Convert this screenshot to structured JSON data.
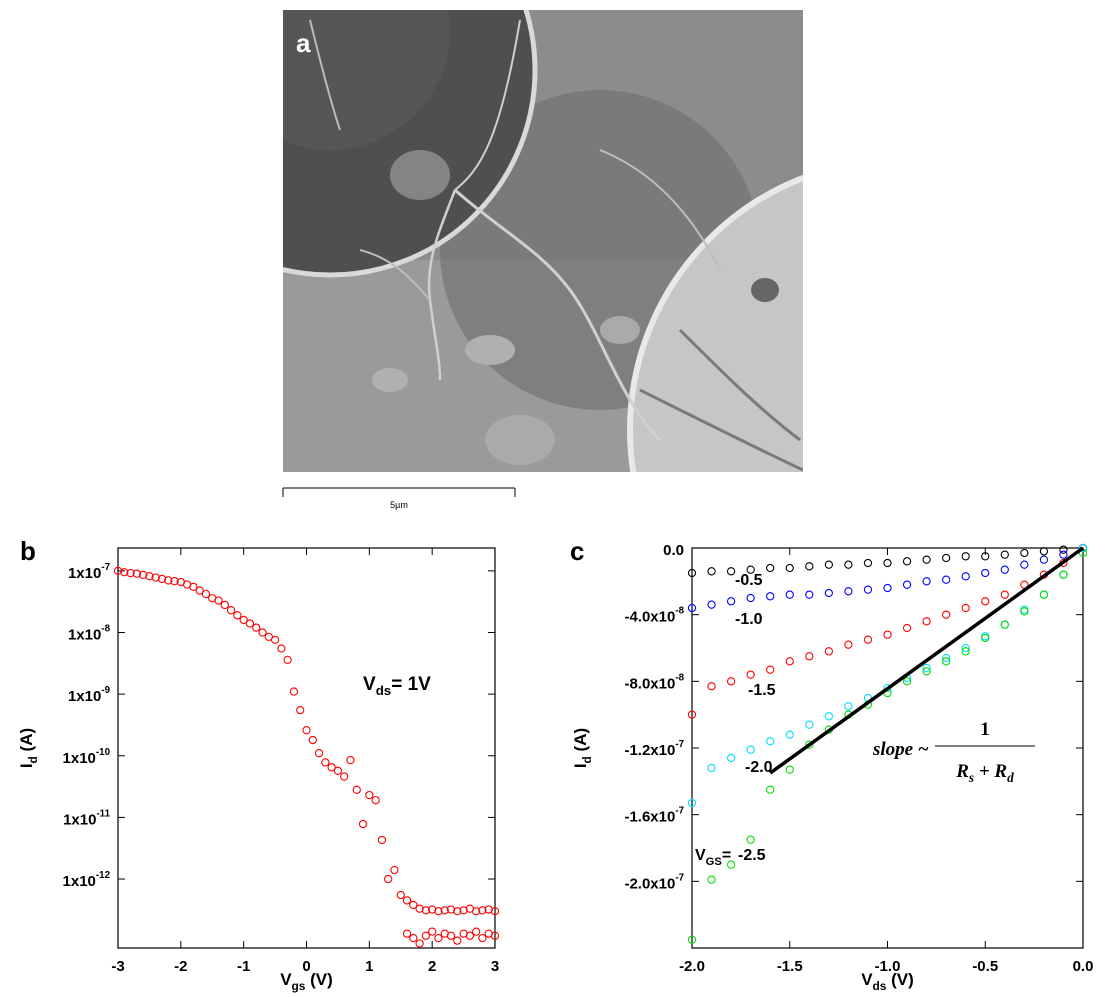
{
  "image_panel": {
    "label": "a",
    "scale_bar": "5µm"
  },
  "chart_data": [
    {
      "type": "scatter",
      "panel_label": "b",
      "xlabel": [
        "V",
        "gs",
        " (V)"
      ],
      "ylabel": [
        "I",
        "d",
        " (A)"
      ],
      "annotation": [
        "V",
        "ds",
        "= 1V"
      ],
      "log_y": true,
      "color": "#ff0000",
      "xlim": [
        -3,
        3
      ],
      "xticks": [
        -3,
        -2,
        -1,
        0,
        1,
        2,
        3
      ],
      "ylim": [
        7.6e-14,
        2.35e-07
      ],
      "yticks": [
        {
          "value": 1e-07,
          "label": "1x10-7"
        },
        {
          "value": 1e-08,
          "label": "1x10-8"
        },
        {
          "value": 1e-09,
          "label": "1x10-9"
        },
        {
          "value": 1e-10,
          "label": "1x10-10"
        },
        {
          "value": 1e-11,
          "label": "1x10-11"
        },
        {
          "value": 1e-12,
          "label": "1x10-12"
        }
      ],
      "x": [
        -3,
        -2.9,
        -2.8,
        -2.7,
        -2.6,
        -2.5,
        -2.4,
        -2.3,
        -2.2,
        -2.1,
        -2,
        -1.9,
        -1.8,
        -1.7,
        -1.6,
        -1.5,
        -1.4,
        -1.3,
        -1.2,
        -1.1,
        -1,
        -0.9,
        -0.8,
        -0.7,
        -0.6,
        -0.5,
        -0.4,
        -0.3,
        -0.2,
        -0.1,
        0,
        0.1,
        0.2,
        0.3,
        0.4,
        0.5,
        0.6,
        0.7,
        0.8,
        0.9,
        1,
        1.1,
        1.2,
        1.3,
        1.4,
        1.5,
        1.6,
        1.7,
        1.8,
        1.9,
        2,
        2.1,
        2.2,
        2.3,
        2.4,
        2.5,
        2.6,
        2.7,
        2.8,
        2.9,
        3,
        1.6,
        1.7,
        1.8,
        1.9,
        2,
        2.1,
        2.2,
        2.3,
        2.4,
        2.5,
        2.6,
        2.7,
        2.8,
        2.9,
        3
      ],
      "values": [
        1e-07,
        9.5e-08,
        9.2e-08,
        9e-08,
        8.6e-08,
        8.2e-08,
        7.8e-08,
        7.4e-08,
        7e-08,
        6.8e-08,
        6.6e-08,
        6e-08,
        5.5e-08,
        4.8e-08,
        4.2e-08,
        3.6e-08,
        3.3e-08,
        2.8e-08,
        2.3e-08,
        1.9e-08,
        1.6e-08,
        1.4e-08,
        1.2e-08,
        1e-08,
        8.5e-09,
        7.6e-09,
        5.5e-09,
        3.6e-09,
        1.1e-09,
        5.5e-10,
        2.6e-10,
        1.8e-10,
        1.1e-10,
        7.8e-11,
        6.5e-11,
        5.7e-11,
        4.6e-11,
        8.5e-11,
        2.8e-11,
        7.8e-12,
        2.3e-11,
        1.9e-11,
        4.3e-12,
        1e-12,
        1.4e-12,
        5.5e-13,
        4.5e-13,
        3.8e-13,
        3.3e-13,
        3.1e-13,
        3.2e-13,
        3e-13,
        3.1e-13,
        3.2e-13,
        3e-13,
        3.1e-13,
        3.3e-13,
        3e-13,
        3.1e-13,
        3.2e-13,
        3e-13,
        1.3e-13,
        1.1e-13,
        9e-14,
        1.2e-13,
        1.4e-13,
        1.1e-13,
        1.3e-13,
        1.2e-13,
        1e-13,
        1.3e-13,
        1.2e-13,
        1.4e-13,
        1.1e-13,
        1.3e-13,
        1.2e-13
      ]
    },
    {
      "type": "scatter",
      "panel_label": "c",
      "xlabel": [
        "V",
        "ds",
        " (V)"
      ],
      "ylabel": [
        "I",
        "d",
        " (A)"
      ],
      "legend_prefix": [
        "V",
        "GS",
        "="
      ],
      "annotation": {
        "text": "slope ~",
        "numerator": "1",
        "denominator": [
          "R",
          "s",
          " + ",
          "R",
          "d"
        ]
      },
      "xlim": [
        -2,
        0
      ],
      "xticks": [
        {
          "value": -2,
          "label": "-2.0"
        },
        {
          "value": -1.5,
          "label": "-1.5"
        },
        {
          "value": -1,
          "label": "-1.0"
        },
        {
          "value": -0.5,
          "label": "-0.5"
        },
        {
          "value": 0,
          "label": "0.0"
        }
      ],
      "ylim": [
        -2.4e-07,
        0
      ],
      "yticks": [
        {
          "value": 0,
          "label": "0.0"
        },
        {
          "value": -4e-08,
          "label": "-4.0x10-8"
        },
        {
          "value": -8e-08,
          "label": "-8.0x10-8"
        },
        {
          "value": -1.2e-07,
          "label": "-1.2x10-7"
        },
        {
          "value": -1.6e-07,
          "label": "-1.6x10-7"
        },
        {
          "value": -2e-07,
          "label": "-2.0x10-7"
        }
      ],
      "x": [
        -2,
        -1.9,
        -1.8,
        -1.7,
        -1.6,
        -1.5,
        -1.4,
        -1.3,
        -1.2,
        -1.1,
        -1,
        -0.9,
        -0.8,
        -0.7,
        -0.6,
        -0.5,
        -0.4,
        -0.3,
        -0.2,
        -0.1,
        0
      ],
      "series": [
        {
          "name": "-0.5",
          "color": "#000000",
          "values": [
            -1.5e-08,
            -1.4e-08,
            -1.4e-08,
            -1.3e-08,
            -1.2e-08,
            -1.2e-08,
            -1.1e-08,
            -1e-08,
            -1e-08,
            -9e-09,
            -9e-09,
            -8e-09,
            -7e-09,
            -6e-09,
            -5e-09,
            -5e-09,
            -4e-09,
            -3e-09,
            -2e-09,
            -1e-09,
            0
          ]
        },
        {
          "name": "-1.0",
          "color": "#0000ff",
          "values": [
            -3.6e-08,
            -3.4e-08,
            -3.2e-08,
            -3e-08,
            -2.9e-08,
            -2.8e-08,
            -2.8e-08,
            -2.7e-08,
            -2.6e-08,
            -2.5e-08,
            -2.4e-08,
            -2.2e-08,
            -2e-08,
            -1.9e-08,
            -1.7e-08,
            -1.5e-08,
            -1.3e-08,
            -1e-08,
            -7e-09,
            -4e-09,
            0
          ]
        },
        {
          "name": "-1.5",
          "color": "#ff0000",
          "values": [
            -1e-07,
            -8.3e-08,
            -8e-08,
            -7.6e-08,
            -7.3e-08,
            -6.8e-08,
            -6.5e-08,
            -6.2e-08,
            -5.8e-08,
            -5.5e-08,
            -5.2e-08,
            -4.8e-08,
            -4.4e-08,
            -4e-08,
            -3.6e-08,
            -3.2e-08,
            -2.8e-08,
            -2.2e-08,
            -1.6e-08,
            -9e-09,
            0
          ]
        },
        {
          "name": "-2.0",
          "color": "#00ddff",
          "values": [
            -1.53e-07,
            -1.32e-07,
            -1.26e-07,
            -1.21e-07,
            -1.16e-07,
            -1.12e-07,
            -1.06e-07,
            -1.01e-07,
            -9.5e-08,
            -9e-08,
            -8.4e-08,
            -7.8e-08,
            -7.2e-08,
            -6.6e-08,
            -6e-08,
            -5.3e-08,
            -4.6e-08,
            -3.7e-08,
            -2.8e-08,
            -1.6e-08,
            0
          ]
        },
        {
          "name": "-2.5",
          "color": "#00dd00",
          "values": [
            -2.35e-07,
            -1.99e-07,
            -1.9e-07,
            -1.75e-07,
            -1.45e-07,
            -1.33e-07,
            -1.18e-07,
            -1.09e-07,
            -1e-07,
            -9.4e-08,
            -8.7e-08,
            -8e-08,
            -7.4e-08,
            -6.8e-08,
            -6.2e-08,
            -5.4e-08,
            -4.6e-08,
            -3.8e-08,
            -2.8e-08,
            -1.6e-08,
            -3e-09
          ]
        }
      ],
      "fit_line": {
        "color": "#000000",
        "x": [
          -1.6,
          0
        ],
        "values": [
          -1.35e-07,
          0
        ]
      }
    }
  ]
}
